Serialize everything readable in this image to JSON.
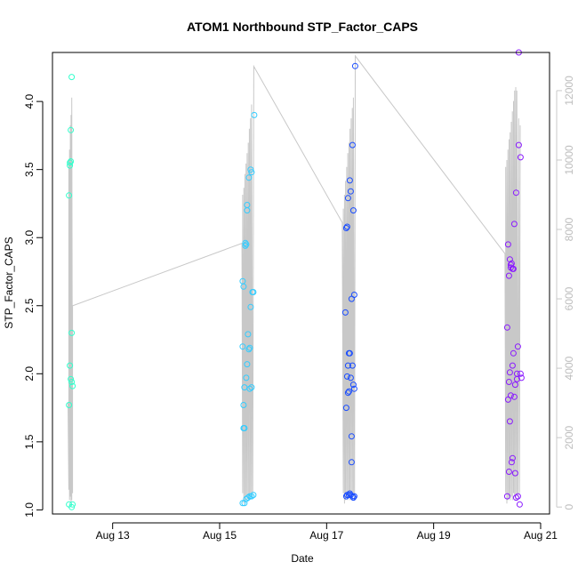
{
  "chart_data": {
    "type": "scatter",
    "title": "ATOM1 Northbound STP_Factor_CAPS",
    "xlabel": "Date",
    "ylabel": "STP_Factor_CAPS",
    "y2label": "",
    "x_range": [
      "2023-08-11T21:00",
      "2023-08-21T04:00"
    ],
    "ylim": [
      0.97,
      4.36
    ],
    "y2lim": [
      -200,
      13100
    ],
    "grid": false,
    "legend": "none",
    "colors": {
      "day1": "#33ffcc",
      "day2": "#33ccff",
      "day3": "#1a4dff",
      "day4": "#8a1aff",
      "secondary": "#c8c8c8",
      "frame": "#000000"
    },
    "x_ticks": [
      {
        "label": "Aug 13",
        "date": "2023-08-13"
      },
      {
        "label": "Aug 15",
        "date": "2023-08-15"
      },
      {
        "label": "Aug 17",
        "date": "2023-08-17"
      },
      {
        "label": "Aug 19",
        "date": "2023-08-19"
      },
      {
        "label": "Aug 21",
        "date": "2023-08-21"
      }
    ],
    "y_ticks": [
      {
        "label": "1.0",
        "value": 1.0
      },
      {
        "label": "1.5",
        "value": 1.5
      },
      {
        "label": "2.0",
        "value": 2.0
      },
      {
        "label": "2.5",
        "value": 2.5
      },
      {
        "label": "3.0",
        "value": 3.0
      },
      {
        "label": "3.5",
        "value": 3.5
      },
      {
        "label": "4.0",
        "value": 4.0
      }
    ],
    "y2_ticks": [
      {
        "label": "0",
        "value": 0
      },
      {
        "label": "2000",
        "value": 2000
      },
      {
        "label": "4000",
        "value": 4000
      },
      {
        "label": "6000",
        "value": 6000
      },
      {
        "label": "8000",
        "value": 8000
      },
      {
        "label": "10000",
        "value": 10000
      },
      {
        "label": "12000",
        "value": 12000
      }
    ],
    "series": [
      {
        "color": "#33ffcc",
        "points": [
          [
            "2023-08-12T04:26",
            1.04
          ],
          [
            "2023-08-12T04:26",
            1.77
          ],
          [
            "2023-08-12T04:26",
            3.31
          ],
          [
            "2023-08-12T04:50",
            2.06
          ],
          [
            "2023-08-12T04:50",
            3.53
          ],
          [
            "2023-08-12T04:50",
            3.55
          ],
          [
            "2023-08-12T05:12",
            3.56
          ],
          [
            "2023-08-12T05:12",
            3.79
          ],
          [
            "2023-08-12T05:12",
            1.96
          ],
          [
            "2023-08-12T05:36",
            2.3
          ],
          [
            "2023-08-12T05:36",
            1.02
          ],
          [
            "2023-08-12T05:36",
            4.18
          ],
          [
            "2023-08-12T05:36",
            1.94
          ],
          [
            "2023-08-12T06:00",
            1.91
          ],
          [
            "2023-08-12T06:00",
            1.04
          ]
        ]
      },
      {
        "color": "#33ccff",
        "points": [
          [
            "2023-08-15T10:19",
            1.05
          ],
          [
            "2023-08-15T10:19",
            2.2
          ],
          [
            "2023-08-15T10:19",
            2.68
          ],
          [
            "2023-08-15T10:43",
            1.6
          ],
          [
            "2023-08-15T10:43",
            1.77
          ],
          [
            "2023-08-15T10:43",
            2.64
          ],
          [
            "2023-08-15T11:07",
            1.9
          ],
          [
            "2023-08-15T11:07",
            1.05
          ],
          [
            "2023-08-15T11:07",
            1.6
          ],
          [
            "2023-08-15T11:31",
            2.94
          ],
          [
            "2023-08-15T11:31",
            2.96
          ],
          [
            "2023-08-15T11:55",
            2.95
          ],
          [
            "2023-08-15T11:55",
            1.97
          ],
          [
            "2023-08-15T11:55",
            1.08
          ],
          [
            "2023-08-15T12:19",
            3.24
          ],
          [
            "2023-08-15T12:19",
            2.07
          ],
          [
            "2023-08-15T12:19",
            3.2
          ],
          [
            "2023-08-15T12:43",
            2.29
          ],
          [
            "2023-08-15T12:43",
            1.09
          ],
          [
            "2023-08-15T13:07",
            2.18
          ],
          [
            "2023-08-15T13:07",
            3.44
          ],
          [
            "2023-08-15T13:31",
            1.89
          ],
          [
            "2023-08-15T13:31",
            1.1
          ],
          [
            "2023-08-15T13:31",
            2.19
          ],
          [
            "2023-08-15T13:55",
            3.5
          ],
          [
            "2023-08-15T13:55",
            2.49
          ],
          [
            "2023-08-15T14:19",
            3.48
          ],
          [
            "2023-08-15T14:19",
            1.9
          ],
          [
            "2023-08-15T14:19",
            1.1
          ],
          [
            "2023-08-15T14:43",
            2.6
          ],
          [
            "2023-08-15T15:07",
            2.6
          ],
          [
            "2023-08-15T15:07",
            1.11
          ],
          [
            "2023-08-15T15:31",
            3.9
          ]
        ]
      },
      {
        "color": "#1a4dff",
        "points": [
          [
            "2023-08-17T08:24",
            2.45
          ],
          [
            "2023-08-17T08:48",
            1.75
          ],
          [
            "2023-08-17T08:48",
            1.1
          ],
          [
            "2023-08-17T08:48",
            3.07
          ],
          [
            "2023-08-17T09:12",
            1.98
          ],
          [
            "2023-08-17T09:12",
            1.11
          ],
          [
            "2023-08-17T09:12",
            3.08
          ],
          [
            "2023-08-17T09:36",
            1.86
          ],
          [
            "2023-08-17T09:36",
            2.06
          ],
          [
            "2023-08-17T09:36",
            3.29
          ],
          [
            "2023-08-17T10:00",
            1.11
          ],
          [
            "2023-08-17T10:00",
            2.15
          ],
          [
            "2023-08-17T10:00",
            1.87
          ],
          [
            "2023-08-17T10:24",
            3.42
          ],
          [
            "2023-08-17T10:24",
            1.12
          ],
          [
            "2023-08-17T10:24",
            2.15
          ],
          [
            "2023-08-17T10:48",
            1.97
          ],
          [
            "2023-08-17T10:48",
            1.11
          ],
          [
            "2023-08-17T10:48",
            3.34
          ],
          [
            "2023-08-17T11:12",
            1.35
          ],
          [
            "2023-08-17T11:12",
            1.54
          ],
          [
            "2023-08-17T11:12",
            2.55
          ],
          [
            "2023-08-17T11:36",
            1.1
          ],
          [
            "2023-08-17T11:36",
            2.06
          ],
          [
            "2023-08-17T11:36",
            3.68
          ],
          [
            "2023-08-17T12:00",
            1.92
          ],
          [
            "2023-08-17T12:00",
            1.09
          ],
          [
            "2023-08-17T12:00",
            3.2
          ],
          [
            "2023-08-17T12:24",
            1.89
          ],
          [
            "2023-08-17T12:24",
            1.1
          ],
          [
            "2023-08-17T12:24",
            2.58
          ],
          [
            "2023-08-17T12:48",
            4.26
          ]
        ]
      },
      {
        "color": "#8a1aff",
        "points": [
          [
            "2023-08-20T09:00",
            2.34
          ],
          [
            "2023-08-20T09:00",
            1.1
          ],
          [
            "2023-08-20T09:24",
            2.95
          ],
          [
            "2023-08-20T09:24",
            1.81
          ],
          [
            "2023-08-20T09:48",
            1.94
          ],
          [
            "2023-08-20T09:48",
            2.72
          ],
          [
            "2023-08-20T09:48",
            1.28
          ],
          [
            "2023-08-20T10:12",
            1.65
          ],
          [
            "2023-08-20T10:12",
            2.01
          ],
          [
            "2023-08-20T10:12",
            2.84
          ],
          [
            "2023-08-20T10:36",
            2.8
          ],
          [
            "2023-08-20T10:36",
            2.78
          ],
          [
            "2023-08-20T10:36",
            1.84
          ],
          [
            "2023-08-20T11:00",
            2.81
          ],
          [
            "2023-08-20T11:00",
            1.35
          ],
          [
            "2023-08-20T11:24",
            2.77
          ],
          [
            "2023-08-20T11:24",
            1.38
          ],
          [
            "2023-08-20T11:24",
            2.06
          ],
          [
            "2023-08-20T11:48",
            2.77
          ],
          [
            "2023-08-20T11:48",
            2.15
          ],
          [
            "2023-08-20T12:12",
            1.83
          ],
          [
            "2023-08-20T12:12",
            3.1
          ],
          [
            "2023-08-20T12:36",
            1.92
          ],
          [
            "2023-08-20T12:36",
            1.27
          ],
          [
            "2023-08-20T13:00",
            3.33
          ],
          [
            "2023-08-20T13:00",
            1.09
          ],
          [
            "2023-08-20T13:24",
            1.96
          ],
          [
            "2023-08-20T13:24",
            2.0
          ],
          [
            "2023-08-20T13:48",
            2.2
          ],
          [
            "2023-08-20T13:48",
            1.1
          ],
          [
            "2023-08-20T14:12",
            3.68
          ],
          [
            "2023-08-20T14:12",
            4.36
          ],
          [
            "2023-08-20T14:36",
            1.04
          ],
          [
            "2023-08-20T15:00",
            2.0
          ],
          [
            "2023-08-20T15:00",
            3.59
          ],
          [
            "2023-08-20T15:24",
            1.97
          ]
        ]
      }
    ],
    "secondary_series": {
      "type": "line",
      "color": "#c8c8c8",
      "points": [
        [
          "2023-08-12T04:00",
          3000
        ],
        [
          "2023-08-12T04:20",
          500
        ],
        [
          "2023-08-12T04:20",
          10000
        ],
        [
          "2023-08-12T04:40",
          200
        ],
        [
          "2023-08-12T04:40",
          10300
        ],
        [
          "2023-08-12T05:00",
          300
        ],
        [
          "2023-08-12T05:00",
          11000
        ],
        [
          "2023-08-12T05:20",
          100
        ],
        [
          "2023-08-12T05:20",
          11300
        ],
        [
          "2023-08-12T05:40",
          200
        ],
        [
          "2023-08-12T05:40",
          11800
        ],
        [
          "2023-08-12T06:00",
          400
        ],
        [
          "2023-08-12T06:00",
          5800
        ],
        [
          "2023-08-15T10:00",
          7600
        ],
        [
          "2023-08-15T10:20",
          400
        ],
        [
          "2023-08-15T10:20",
          9000
        ],
        [
          "2023-08-15T10:50",
          100
        ],
        [
          "2023-08-15T10:50",
          9200
        ],
        [
          "2023-08-15T11:20",
          200
        ],
        [
          "2023-08-15T11:20",
          9600
        ],
        [
          "2023-08-15T11:50",
          300
        ],
        [
          "2023-08-15T11:50",
          9900
        ],
        [
          "2023-08-15T12:20",
          200
        ],
        [
          "2023-08-15T12:20",
          10200
        ],
        [
          "2023-08-15T12:50",
          300
        ],
        [
          "2023-08-15T12:50",
          10500
        ],
        [
          "2023-08-15T13:20",
          200
        ],
        [
          "2023-08-15T13:20",
          10900
        ],
        [
          "2023-08-15T13:50",
          400
        ],
        [
          "2023-08-15T13:50",
          11200
        ],
        [
          "2023-08-15T14:20",
          300
        ],
        [
          "2023-08-15T14:20",
          11600
        ],
        [
          "2023-08-15T14:50",
          400
        ],
        [
          "2023-08-15T15:20",
          12700
        ],
        [
          "2023-08-17T07:00",
          8200
        ],
        [
          "2023-08-17T07:30",
          400
        ],
        [
          "2023-08-17T07:30",
          8600
        ],
        [
          "2023-08-17T08:00",
          100
        ],
        [
          "2023-08-17T08:00",
          9000
        ],
        [
          "2023-08-17T08:30",
          200
        ],
        [
          "2023-08-17T08:30",
          9400
        ],
        [
          "2023-08-17T09:00",
          300
        ],
        [
          "2023-08-17T09:00",
          9800
        ],
        [
          "2023-08-17T09:30",
          200
        ],
        [
          "2023-08-17T09:30",
          10200
        ],
        [
          "2023-08-17T10:00",
          300
        ],
        [
          "2023-08-17T10:00",
          10500
        ],
        [
          "2023-08-17T10:30",
          200
        ],
        [
          "2023-08-17T10:30",
          10900
        ],
        [
          "2023-08-17T11:00",
          400
        ],
        [
          "2023-08-17T11:00",
          11200
        ],
        [
          "2023-08-17T11:30",
          300
        ],
        [
          "2023-08-17T11:30",
          11500
        ],
        [
          "2023-08-17T12:00",
          400
        ],
        [
          "2023-08-17T12:00",
          11800
        ],
        [
          "2023-08-17T12:30",
          200
        ],
        [
          "2023-08-17T12:50",
          13000
        ],
        [
          "2023-08-20T08:00",
          7300
        ],
        [
          "2023-08-20T08:20",
          400
        ],
        [
          "2023-08-20T08:20",
          9800
        ],
        [
          "2023-08-20T08:50",
          100
        ],
        [
          "2023-08-20T08:50",
          10000
        ],
        [
          "2023-08-20T09:20",
          200
        ],
        [
          "2023-08-20T09:20",
          10300
        ],
        [
          "2023-08-20T09:50",
          300
        ],
        [
          "2023-08-20T09:50",
          10600
        ],
        [
          "2023-08-20T10:20",
          200
        ],
        [
          "2023-08-20T10:20",
          10800
        ],
        [
          "2023-08-20T10:50",
          300
        ],
        [
          "2023-08-20T10:50",
          11100
        ],
        [
          "2023-08-20T11:20",
          200
        ],
        [
          "2023-08-20T11:20",
          11400
        ],
        [
          "2023-08-20T11:50",
          400
        ],
        [
          "2023-08-20T11:50",
          11700
        ],
        [
          "2023-08-20T12:20",
          300
        ],
        [
          "2023-08-20T12:20",
          12000
        ],
        [
          "2023-08-20T12:50",
          200
        ],
        [
          "2023-08-20T12:50",
          12100
        ],
        [
          "2023-08-20T13:20",
          400
        ],
        [
          "2023-08-20T13:20",
          12000
        ],
        [
          "2023-08-20T13:50",
          300
        ],
        [
          "2023-08-20T14:10",
          11200
        ],
        [
          "2023-08-20T14:30",
          400
        ],
        [
          "2023-08-20T14:50",
          11000
        ]
      ]
    }
  }
}
